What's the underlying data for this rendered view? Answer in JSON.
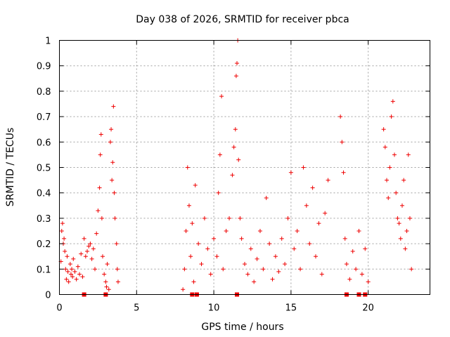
{
  "chart_data": {
    "type": "scatter",
    "title": "Day 038 of 2026, SRMTID for receiver pbca",
    "xlabel": "GPS time / hours",
    "ylabel": "SRMTID / TECUs",
    "xlim": [
      0,
      24
    ],
    "ylim": [
      0,
      1
    ],
    "x_ticks": [
      "0",
      "5",
      "10",
      "15",
      "20"
    ],
    "y_ticks": [
      "0",
      "0.1",
      "0.2",
      "0.3",
      "0.4",
      "0.5",
      "0.6",
      "0.7",
      "0.8",
      "0.9",
      "1"
    ],
    "grid": true,
    "marker": "+",
    "colors": {
      "points": "#ee0000",
      "grid": "#a0a0a0",
      "axes": "#000000"
    },
    "series": [
      {
        "name": "SRMTID",
        "points": [
          [
            0.1,
            0.13
          ],
          [
            0.15,
            0.25
          ],
          [
            0.2,
            0.28
          ],
          [
            0.25,
            0.2
          ],
          [
            0.3,
            0.22
          ],
          [
            0.35,
            0.17
          ],
          [
            0.4,
            0.1
          ],
          [
            0.45,
            0.06
          ],
          [
            0.5,
            0.15
          ],
          [
            0.55,
            0.09
          ],
          [
            0.6,
            0.05
          ],
          [
            0.7,
            0.12
          ],
          [
            0.75,
            0.08
          ],
          [
            0.8,
            0.1
          ],
          [
            0.85,
            0.07
          ],
          [
            0.9,
            0.14
          ],
          [
            1.0,
            0.09
          ],
          [
            1.1,
            0.06
          ],
          [
            1.2,
            0.11
          ],
          [
            1.3,
            0.08
          ],
          [
            1.4,
            0.16
          ],
          [
            1.5,
            0.07
          ],
          [
            1.6,
            0.22
          ],
          [
            1.7,
            0.15
          ],
          [
            1.8,
            0.17
          ],
          [
            1.9,
            0.19
          ],
          [
            2.0,
            0.2
          ],
          [
            2.1,
            0.14
          ],
          [
            2.2,
            0.18
          ],
          [
            2.3,
            0.1
          ],
          [
            2.4,
            0.24
          ],
          [
            2.5,
            0.33
          ],
          [
            2.6,
            0.42
          ],
          [
            2.65,
            0.55
          ],
          [
            2.7,
            0.63
          ],
          [
            2.75,
            0.3
          ],
          [
            2.8,
            0.15
          ],
          [
            2.9,
            0.08
          ],
          [
            3.0,
            0.05
          ],
          [
            3.05,
            0.03
          ],
          [
            3.1,
            0.12
          ],
          [
            3.2,
            0.02
          ],
          [
            3.3,
            0.6
          ],
          [
            3.35,
            0.65
          ],
          [
            3.4,
            0.45
          ],
          [
            3.45,
            0.52
          ],
          [
            3.5,
            0.74
          ],
          [
            3.55,
            0.4
          ],
          [
            3.6,
            0.3
          ],
          [
            3.7,
            0.2
          ],
          [
            3.75,
            0.1
          ],
          [
            3.8,
            0.05
          ],
          [
            8.0,
            0.02
          ],
          [
            8.1,
            0.1
          ],
          [
            8.2,
            0.25
          ],
          [
            8.3,
            0.5
          ],
          [
            8.4,
            0.35
          ],
          [
            8.5,
            0.15
          ],
          [
            8.6,
            0.28
          ],
          [
            8.7,
            0.05
          ],
          [
            8.8,
            0.43
          ],
          [
            9.0,
            0.2
          ],
          [
            9.2,
            0.12
          ],
          [
            9.4,
            0.3
          ],
          [
            9.6,
            0.18
          ],
          [
            9.8,
            0.08
          ],
          [
            10.0,
            0.22
          ],
          [
            10.2,
            0.15
          ],
          [
            10.3,
            0.4
          ],
          [
            10.4,
            0.55
          ],
          [
            10.5,
            0.78
          ],
          [
            10.6,
            0.1
          ],
          [
            10.8,
            0.25
          ],
          [
            11.0,
            0.3
          ],
          [
            11.2,
            0.47
          ],
          [
            11.3,
            0.58
          ],
          [
            11.4,
            0.65
          ],
          [
            11.45,
            0.86
          ],
          [
            11.5,
            0.91
          ],
          [
            11.55,
            1.0
          ],
          [
            11.6,
            0.53
          ],
          [
            11.7,
            0.3
          ],
          [
            11.8,
            0.22
          ],
          [
            12.0,
            0.12
          ],
          [
            12.2,
            0.08
          ],
          [
            12.4,
            0.18
          ],
          [
            12.6,
            0.05
          ],
          [
            12.8,
            0.14
          ],
          [
            13.0,
            0.25
          ],
          [
            13.2,
            0.1
          ],
          [
            13.4,
            0.38
          ],
          [
            13.6,
            0.2
          ],
          [
            13.8,
            0.06
          ],
          [
            14.0,
            0.15
          ],
          [
            14.2,
            0.09
          ],
          [
            14.4,
            0.22
          ],
          [
            14.6,
            0.12
          ],
          [
            14.8,
            0.3
          ],
          [
            15.0,
            0.48
          ],
          [
            15.2,
            0.18
          ],
          [
            15.4,
            0.25
          ],
          [
            15.6,
            0.1
          ],
          [
            15.8,
            0.5
          ],
          [
            16.0,
            0.35
          ],
          [
            16.2,
            0.2
          ],
          [
            16.4,
            0.42
          ],
          [
            16.6,
            0.15
          ],
          [
            16.8,
            0.28
          ],
          [
            17.0,
            0.08
          ],
          [
            17.2,
            0.32
          ],
          [
            17.4,
            0.45
          ],
          [
            18.2,
            0.7
          ],
          [
            18.3,
            0.6
          ],
          [
            18.4,
            0.48
          ],
          [
            18.5,
            0.22
          ],
          [
            18.6,
            0.12
          ],
          [
            18.8,
            0.06
          ],
          [
            19.0,
            0.17
          ],
          [
            19.2,
            0.1
          ],
          [
            19.4,
            0.25
          ],
          [
            19.6,
            0.08
          ],
          [
            19.8,
            0.18
          ],
          [
            20.0,
            0.05
          ],
          [
            21.0,
            0.65
          ],
          [
            21.1,
            0.58
          ],
          [
            21.2,
            0.45
          ],
          [
            21.3,
            0.38
          ],
          [
            21.4,
            0.5
          ],
          [
            21.5,
            0.7
          ],
          [
            21.6,
            0.76
          ],
          [
            21.7,
            0.55
          ],
          [
            21.8,
            0.4
          ],
          [
            21.9,
            0.3
          ],
          [
            22.0,
            0.28
          ],
          [
            22.1,
            0.22
          ],
          [
            22.2,
            0.35
          ],
          [
            22.3,
            0.45
          ],
          [
            22.4,
            0.18
          ],
          [
            22.5,
            0.25
          ],
          [
            22.6,
            0.55
          ],
          [
            22.7,
            0.3
          ],
          [
            22.8,
            0.1
          ]
        ]
      }
    ],
    "zero_markers_x": [
      1.6,
      3.0,
      8.6,
      8.9,
      11.5,
      18.6,
      19.4,
      19.8
    ]
  }
}
